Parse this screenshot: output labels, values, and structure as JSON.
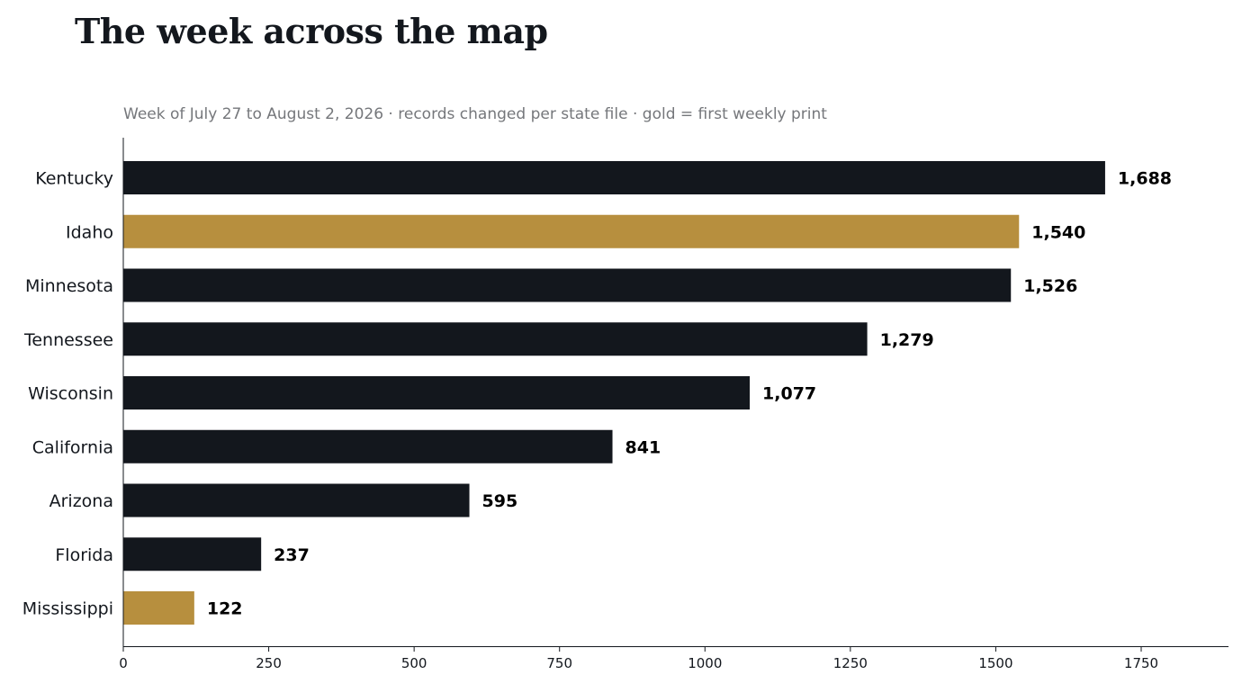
{
  "title": "The week across the map",
  "subtitle": "Week of July 27 to August 2, 2026 · records changed per state file · gold = first weekly print",
  "colors": {
    "bar": "#13171d",
    "highlight": "#b78f3e",
    "axis": "#13171d"
  },
  "chart_data": {
    "type": "bar",
    "orientation": "horizontal",
    "categories": [
      "Kentucky",
      "Idaho",
      "Minnesota",
      "Tennessee",
      "Wisconsin",
      "California",
      "Arizona",
      "Florida",
      "Mississippi"
    ],
    "values": [
      1688,
      1540,
      1526,
      1279,
      1077,
      841,
      595,
      237,
      122
    ],
    "value_labels": [
      "1,688",
      "1,540",
      "1,526",
      "1,279",
      "1,077",
      "841",
      "595",
      "237",
      "122"
    ],
    "highlighted": [
      false,
      true,
      false,
      false,
      false,
      false,
      false,
      false,
      true
    ],
    "xlim": [
      0,
      1900
    ],
    "xticks": [
      0,
      250,
      500,
      750,
      1000,
      1250,
      1500,
      1750
    ],
    "xtick_labels": [
      "0",
      "250",
      "500",
      "750",
      "1000",
      "1250",
      "1500",
      "1750"
    ],
    "xlabel": "",
    "ylabel": "",
    "grid": false,
    "legend": "none"
  }
}
